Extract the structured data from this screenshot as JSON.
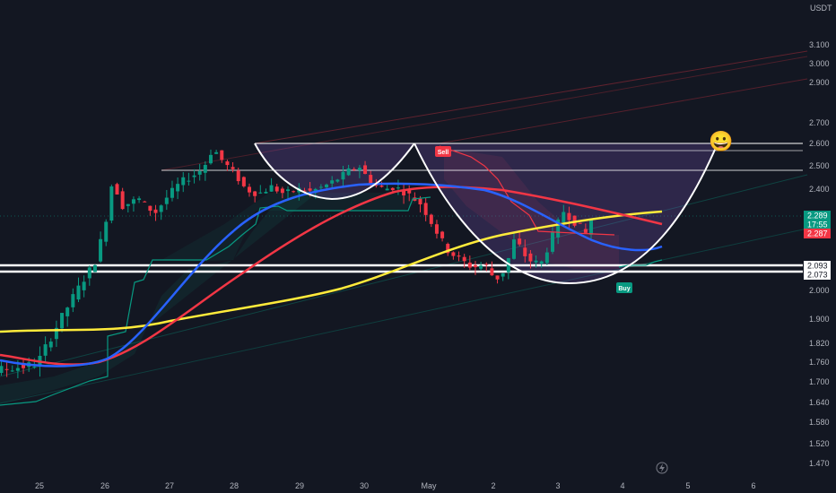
{
  "chart_data": {
    "type": "candlestick",
    "currency": "USDT",
    "price_axis_ticks": [
      "3.100",
      "3.000",
      "2.900",
      "2.700",
      "2.600",
      "2.500",
      "2.400",
      "2.289",
      "2.000",
      "1.900",
      "1.820",
      "1.760",
      "1.700",
      "1.640",
      "1.580",
      "1.520",
      "1.470"
    ],
    "time_axis_ticks": [
      "25",
      "26",
      "27",
      "28",
      "29",
      "30",
      "May",
      "2",
      "3",
      "4",
      "5",
      "6"
    ],
    "price_tags": {
      "last": {
        "label": "2.289",
        "color": "#089981"
      },
      "countdown": {
        "label": "17:55",
        "color": "#089981"
      },
      "ma_red": {
        "label": "2.287",
        "color": "#f23645"
      },
      "level_1": {
        "label": "2.093",
        "color": "#ffffff"
      },
      "level_2": {
        "label": "2.073",
        "color": "#ffffff"
      }
    },
    "signals": [
      {
        "label": "Sell",
        "color": "#f23645"
      },
      {
        "label": "Buy",
        "color": "#089981"
      }
    ],
    "emoji": "😀",
    "colors": {
      "up": "#089981",
      "down": "#f23645",
      "ma_blue": "#2962ff",
      "ma_red": "#f23645",
      "ma_yellow": "#ffeb3b",
      "background": "#131722",
      "pattern_fill": "#7e57c2"
    },
    "grid": false
  }
}
